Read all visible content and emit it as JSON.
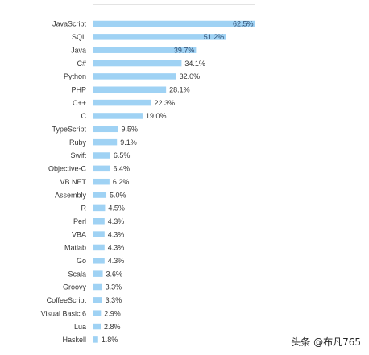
{
  "chart_data": {
    "type": "bar",
    "orientation": "horizontal",
    "title": "",
    "xlabel": "",
    "ylabel": "",
    "xlim": [
      0,
      62.5
    ],
    "categories": [
      "JavaScript",
      "SQL",
      "Java",
      "C#",
      "Python",
      "PHP",
      "C++",
      "C",
      "TypeScript",
      "Ruby",
      "Swift",
      "Objective-C",
      "VB.NET",
      "Assembly",
      "R",
      "Perl",
      "VBA",
      "Matlab",
      "Go",
      "Scala",
      "Groovy",
      "CoffeeScript",
      "Visual Basic 6",
      "Lua",
      "Haskell"
    ],
    "values": [
      62.5,
      51.2,
      39.7,
      34.1,
      32.0,
      28.1,
      22.3,
      19.0,
      9.5,
      9.1,
      6.5,
      6.4,
      6.2,
      5.0,
      4.5,
      4.3,
      4.3,
      4.3,
      4.3,
      3.6,
      3.3,
      3.3,
      2.9,
      2.8,
      1.8
    ],
    "labels": [
      "62.5%",
      "51.2%",
      "39.7%",
      "34.1%",
      "32.0%",
      "28.1%",
      "22.3%",
      "19.0%",
      "9.5%",
      "9.1%",
      "6.5%",
      "6.4%",
      "6.2%",
      "5.0%",
      "4.5%",
      "4.3%",
      "4.3%",
      "4.3%",
      "4.3%",
      "3.6%",
      "3.3%",
      "3.3%",
      "2.9%",
      "2.8%",
      "1.8%"
    ],
    "bar_color": "#9fd2f4",
    "grid": false,
    "legend": "none"
  },
  "watermark": "头条 @布凡765"
}
